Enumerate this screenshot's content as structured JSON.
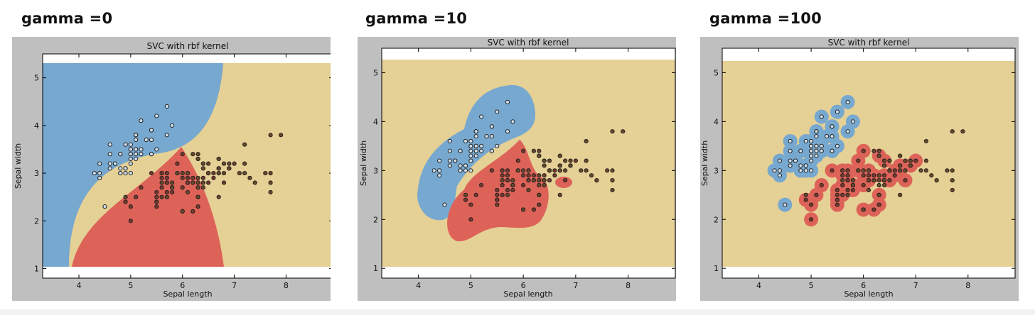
{
  "chart_data": [
    {
      "type": "scatter",
      "heading": "gamma =0",
      "title": "SVC with rbf kernel",
      "xlabel": "Sepal length",
      "ylabel": "Sepal width",
      "xlim": [
        3.3,
        8.9
      ],
      "ylim": [
        0.8,
        5.5
      ],
      "xticks": [
        "4",
        "5",
        "6",
        "7",
        "8"
      ],
      "yticks": [
        "1",
        "2",
        "3",
        "4",
        "5"
      ],
      "grid": false,
      "regions": {
        "blue": "#77a8cf",
        "red": "#dd6359",
        "yellow": "#e5d095"
      }
    },
    {
      "type": "scatter",
      "heading": "gamma =10",
      "title": "SVC with rbf kernel",
      "xlabel": "Sepal length",
      "ylabel": "Sepal width",
      "xlim": [
        3.3,
        8.9
      ],
      "ylim": [
        0.8,
        5.5
      ],
      "xticks": [
        "4",
        "5",
        "6",
        "7",
        "8"
      ],
      "yticks": [
        "1",
        "2",
        "3",
        "4",
        "5"
      ],
      "grid": false,
      "regions": {
        "blue": "#77a8cf",
        "red": "#dd6359",
        "yellow": "#e5d095"
      }
    },
    {
      "type": "scatter",
      "heading": "gamma =100",
      "title": "SVC with rbf kernel",
      "xlabel": "Sepal length",
      "ylabel": "Sepal width",
      "xlim": [
        3.3,
        8.9
      ],
      "ylim": [
        0.8,
        5.5
      ],
      "xticks": [
        "4",
        "5",
        "6",
        "7",
        "8"
      ],
      "yticks": [
        "1",
        "2",
        "3",
        "4",
        "5"
      ],
      "grid": false,
      "regions": {
        "blue": "#77a8cf",
        "red": "#dd6359",
        "yellow": "#e5d095"
      }
    }
  ],
  "points": {
    "setosa": [
      [
        5.1,
        3.5
      ],
      [
        4.9,
        3.0
      ],
      [
        4.7,
        3.2
      ],
      [
        4.6,
        3.1
      ],
      [
        5.0,
        3.6
      ],
      [
        5.4,
        3.9
      ],
      [
        4.6,
        3.4
      ],
      [
        5.0,
        3.4
      ],
      [
        4.4,
        2.9
      ],
      [
        4.9,
        3.1
      ],
      [
        5.4,
        3.7
      ],
      [
        4.8,
        3.4
      ],
      [
        4.8,
        3.0
      ],
      [
        4.3,
        3.0
      ],
      [
        5.8,
        4.0
      ],
      [
        5.7,
        4.4
      ],
      [
        5.4,
        3.9
      ],
      [
        5.1,
        3.5
      ],
      [
        5.7,
        3.8
      ],
      [
        5.1,
        3.8
      ],
      [
        5.4,
        3.4
      ],
      [
        5.1,
        3.7
      ],
      [
        4.6,
        3.6
      ],
      [
        5.1,
        3.3
      ],
      [
        4.8,
        3.4
      ],
      [
        5.0,
        3.0
      ],
      [
        5.0,
        3.4
      ],
      [
        5.2,
        3.5
      ],
      [
        5.2,
        3.4
      ],
      [
        4.7,
        3.2
      ],
      [
        4.8,
        3.1
      ],
      [
        5.4,
        3.4
      ],
      [
        5.2,
        4.1
      ],
      [
        5.5,
        4.2
      ],
      [
        4.9,
        3.1
      ],
      [
        5.0,
        3.2
      ],
      [
        5.5,
        3.5
      ],
      [
        4.9,
        3.6
      ],
      [
        4.4,
        3.0
      ],
      [
        5.1,
        3.4
      ],
      [
        5.0,
        3.5
      ],
      [
        4.5,
        2.3
      ],
      [
        4.4,
        3.2
      ],
      [
        5.0,
        3.5
      ],
      [
        5.1,
        3.8
      ],
      [
        4.8,
        3.0
      ],
      [
        5.1,
        3.8
      ],
      [
        4.6,
        3.2
      ],
      [
        5.3,
        3.7
      ],
      [
        5.0,
        3.3
      ]
    ],
    "versicolor": [
      [
        7.0,
        3.2
      ],
      [
        6.4,
        3.2
      ],
      [
        6.9,
        3.1
      ],
      [
        5.5,
        2.3
      ],
      [
        6.5,
        2.8
      ],
      [
        5.7,
        2.8
      ],
      [
        6.3,
        3.3
      ],
      [
        4.9,
        2.4
      ],
      [
        6.6,
        2.9
      ],
      [
        5.2,
        2.7
      ],
      [
        5.0,
        2.0
      ],
      [
        5.9,
        3.0
      ],
      [
        6.0,
        2.2
      ],
      [
        6.1,
        2.9
      ],
      [
        5.6,
        2.9
      ],
      [
        6.7,
        3.1
      ],
      [
        5.6,
        3.0
      ],
      [
        5.8,
        2.7
      ],
      [
        6.2,
        2.2
      ],
      [
        5.6,
        2.5
      ],
      [
        5.9,
        3.2
      ],
      [
        6.1,
        2.8
      ],
      [
        6.3,
        2.5
      ],
      [
        6.1,
        2.8
      ],
      [
        6.4,
        2.9
      ],
      [
        6.6,
        3.0
      ],
      [
        6.8,
        2.8
      ],
      [
        6.7,
        3.0
      ],
      [
        6.0,
        2.9
      ],
      [
        5.7,
        2.6
      ],
      [
        5.5,
        2.4
      ],
      [
        5.5,
        2.4
      ],
      [
        5.8,
        2.7
      ],
      [
        6.0,
        2.7
      ],
      [
        5.4,
        3.0
      ],
      [
        6.0,
        3.4
      ],
      [
        6.7,
        3.1
      ],
      [
        6.3,
        2.3
      ],
      [
        5.6,
        3.0
      ],
      [
        5.5,
        2.5
      ],
      [
        5.5,
        2.6
      ],
      [
        6.1,
        3.0
      ],
      [
        5.8,
        2.6
      ],
      [
        5.0,
        2.3
      ],
      [
        5.6,
        2.7
      ],
      [
        5.7,
        3.0
      ],
      [
        5.7,
        2.9
      ],
      [
        6.2,
        2.9
      ],
      [
        5.1,
        2.5
      ],
      [
        5.7,
        2.8
      ]
    ],
    "virginica": [
      [
        6.3,
        3.3
      ],
      [
        5.8,
        2.7
      ],
      [
        7.1,
        3.0
      ],
      [
        6.3,
        2.9
      ],
      [
        6.5,
        3.0
      ],
      [
        7.6,
        3.0
      ],
      [
        4.9,
        2.5
      ],
      [
        7.3,
        2.9
      ],
      [
        6.7,
        2.5
      ],
      [
        7.2,
        3.6
      ],
      [
        6.5,
        3.2
      ],
      [
        6.4,
        2.7
      ],
      [
        6.8,
        3.0
      ],
      [
        5.7,
        2.5
      ],
      [
        5.8,
        2.8
      ],
      [
        6.4,
        3.2
      ],
      [
        6.5,
        3.0
      ],
      [
        7.7,
        3.8
      ],
      [
        7.7,
        2.6
      ],
      [
        6.0,
        2.2
      ],
      [
        6.9,
        3.2
      ],
      [
        5.6,
        2.8
      ],
      [
        7.7,
        2.8
      ],
      [
        6.3,
        2.7
      ],
      [
        6.7,
        3.3
      ],
      [
        7.2,
        3.2
      ],
      [
        6.2,
        2.8
      ],
      [
        6.1,
        3.0
      ],
      [
        6.4,
        2.8
      ],
      [
        7.2,
        3.0
      ],
      [
        7.4,
        2.8
      ],
      [
        7.9,
        3.8
      ],
      [
        6.4,
        2.8
      ],
      [
        6.3,
        2.8
      ],
      [
        6.1,
        2.6
      ],
      [
        7.7,
        3.0
      ],
      [
        6.3,
        3.4
      ],
      [
        6.4,
        3.1
      ],
      [
        6.0,
        3.0
      ],
      [
        6.9,
        3.1
      ],
      [
        6.7,
        3.1
      ],
      [
        6.9,
        3.1
      ],
      [
        5.8,
        2.7
      ],
      [
        6.8,
        3.2
      ],
      [
        6.7,
        3.3
      ],
      [
        6.7,
        3.0
      ],
      [
        6.3,
        2.5
      ],
      [
        6.5,
        3.0
      ],
      [
        6.2,
        3.4
      ],
      [
        5.9,
        3.0
      ]
    ]
  }
}
